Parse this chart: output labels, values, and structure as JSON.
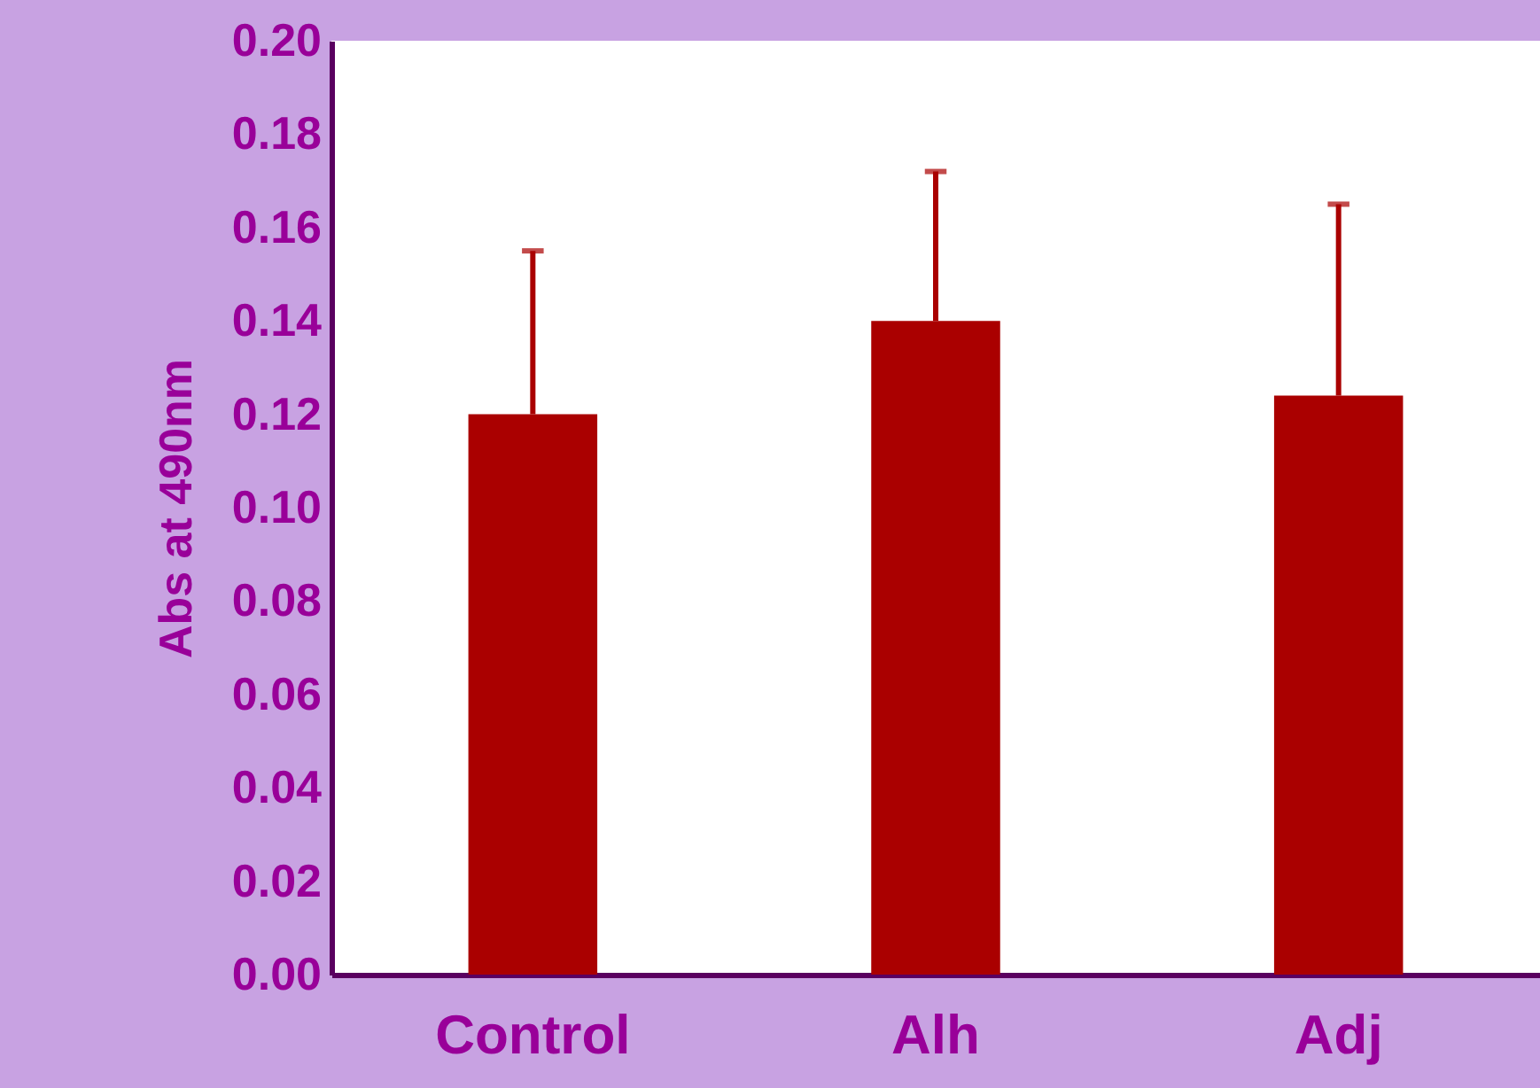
{
  "chart_data": {
    "type": "bar",
    "ylabel": "Abs at 490nm",
    "categories": [
      "Control",
      "Alh",
      "Adj"
    ],
    "values": [
      0.12,
      0.14,
      0.124
    ],
    "errors": [
      [
        0.12,
        0.155
      ],
      [
        0.14,
        0.172
      ],
      [
        0.124,
        0.165
      ]
    ],
    "color": "#aa0000",
    "ylim": [
      0,
      0.2
    ],
    "yticks": [
      {
        "value": 0,
        "label": "0.00"
      },
      {
        "value": 0.02,
        "label": "0.02"
      },
      {
        "value": 0.04,
        "label": "0.04"
      },
      {
        "value": 0.06,
        "label": "0.06"
      },
      {
        "value": 0.08,
        "label": "0.08"
      },
      {
        "value": 0.1,
        "label": "0.10"
      },
      {
        "value": 0.12,
        "label": "0.12"
      },
      {
        "value": 0.14,
        "label": "0.14"
      },
      {
        "value": 0.16,
        "label": "0.16"
      },
      {
        "value": 0.18,
        "label": "0.18"
      },
      {
        "value": 0.2,
        "label": "0.20"
      }
    ],
    "grid": false
  }
}
